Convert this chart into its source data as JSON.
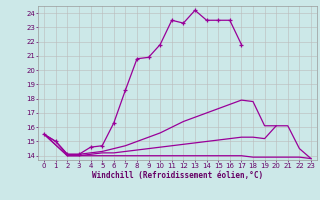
{
  "title": "",
  "xlabel": "Windchill (Refroidissement éolien,°C)",
  "background_color": "#cce8e8",
  "line_color": "#990099",
  "grid_color": "#bbbbbb",
  "xlim": [
    -0.5,
    23.5
  ],
  "ylim": [
    13.7,
    24.5
  ],
  "yticks": [
    14,
    15,
    16,
    17,
    18,
    19,
    20,
    21,
    22,
    23,
    24
  ],
  "xticks": [
    0,
    1,
    2,
    3,
    4,
    5,
    6,
    7,
    8,
    9,
    10,
    11,
    12,
    13,
    14,
    15,
    16,
    17,
    18,
    19,
    20,
    21,
    22,
    23
  ],
  "hours": [
    0,
    1,
    2,
    3,
    4,
    5,
    6,
    7,
    8,
    9,
    10,
    11,
    12,
    13,
    14,
    15,
    16,
    17,
    18,
    19,
    20,
    21,
    22,
    23
  ],
  "line1_x": [
    0,
    1,
    2,
    3,
    4,
    5,
    6,
    7,
    8,
    9,
    10,
    11,
    12,
    13,
    14,
    15,
    16,
    17
  ],
  "line1_y": [
    15.5,
    15.0,
    14.1,
    14.1,
    14.6,
    14.7,
    16.3,
    18.6,
    20.8,
    20.9,
    21.8,
    23.5,
    23.3,
    24.2,
    23.5,
    23.5,
    23.5,
    21.8
  ],
  "line2_x": [
    0,
    1,
    2,
    3,
    4,
    5,
    6,
    7,
    8,
    9,
    10,
    11,
    12,
    13,
    14,
    15,
    16,
    17,
    18,
    19,
    20
  ],
  "line2_y": [
    15.5,
    15.0,
    14.1,
    14.1,
    14.2,
    14.3,
    14.5,
    14.7,
    15.0,
    15.3,
    15.6,
    16.0,
    16.4,
    16.7,
    17.0,
    17.3,
    17.6,
    17.9,
    17.8,
    16.1,
    16.1
  ],
  "line3_x": [
    0,
    2,
    3,
    4,
    5,
    6,
    7,
    8,
    9,
    10,
    11,
    12,
    13,
    14,
    15,
    16,
    17,
    18,
    19,
    20,
    21,
    22,
    23
  ],
  "line3_y": [
    15.5,
    14.0,
    14.0,
    14.0,
    14.0,
    14.0,
    14.0,
    14.0,
    14.0,
    14.0,
    14.0,
    14.0,
    14.0,
    14.0,
    14.0,
    14.0,
    14.0,
    13.9,
    13.9,
    13.9,
    13.9,
    13.9,
    13.8
  ],
  "line4_x": [
    0,
    2,
    3,
    4,
    5,
    6,
    7,
    8,
    9,
    10,
    11,
    12,
    13,
    14,
    15,
    16,
    17,
    18,
    19,
    20,
    21,
    22,
    23
  ],
  "line4_y": [
    15.5,
    14.0,
    14.0,
    14.1,
    14.2,
    14.2,
    14.3,
    14.4,
    14.5,
    14.6,
    14.7,
    14.8,
    14.9,
    15.0,
    15.1,
    15.2,
    15.3,
    15.3,
    15.2,
    16.1,
    16.1,
    14.5,
    13.8
  ]
}
